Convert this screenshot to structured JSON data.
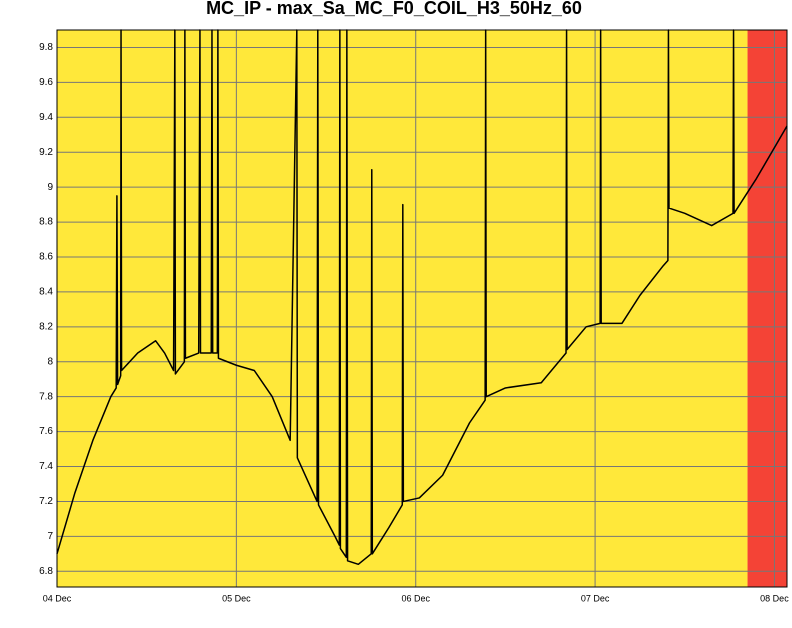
{
  "chart_data": {
    "type": "line",
    "title": "MC_IP - max_Sa_MC_F0_COIL_H3_50Hz_60",
    "x": [
      0,
      0.1,
      0.2,
      0.3,
      0.33,
      0.334,
      0.338,
      0.355,
      0.357,
      0.36,
      0.45,
      0.55,
      0.6,
      0.65,
      0.657,
      0.66,
      0.71,
      0.713,
      0.716,
      0.79,
      0.797,
      0.8,
      0.86,
      0.864,
      0.868,
      0.894,
      0.897,
      0.9,
      1.0,
      1.1,
      1.2,
      1.3,
      1.337,
      1.34,
      1.45,
      1.454,
      1.458,
      1.55,
      1.574,
      1.577,
      1.58,
      1.613,
      1.616,
      1.62,
      1.68,
      1.752,
      1.755,
      1.758,
      1.85,
      1.925,
      1.928,
      1.931,
      2.02,
      2.15,
      2.3,
      2.387,
      2.39,
      2.393,
      2.5,
      2.7,
      2.838,
      2.841,
      2.844,
      2.95,
      3.028,
      3.031,
      3.034,
      3.15,
      3.25,
      3.38,
      3.406,
      3.409,
      3.412,
      3.5,
      3.65,
      3.769,
      3.772,
      3.775,
      3.9,
      4.07
    ],
    "series": [
      {
        "color": "#000000",
        "values": [
          6.9,
          7.25,
          7.55,
          7.8,
          7.85,
          8.95,
          7.87,
          7.92,
          9.9,
          7.95,
          8.05,
          8.12,
          8.05,
          7.95,
          9.9,
          7.93,
          8.0,
          9.9,
          8.02,
          8.05,
          9.9,
          8.05,
          8.05,
          9.9,
          8.05,
          8.05,
          9.9,
          8.02,
          7.98,
          7.95,
          7.8,
          7.55,
          9.9,
          7.45,
          7.2,
          9.9,
          7.18,
          7.0,
          6.95,
          9.9,
          6.93,
          6.88,
          9.9,
          6.86,
          6.84,
          6.9,
          9.1,
          6.9,
          7.05,
          7.18,
          8.9,
          7.2,
          7.22,
          7.35,
          7.65,
          7.78,
          9.9,
          7.8,
          7.85,
          7.88,
          8.05,
          9.9,
          8.07,
          8.2,
          8.22,
          9.9,
          8.22,
          8.22,
          8.38,
          8.55,
          8.58,
          9.9,
          8.88,
          8.85,
          8.78,
          8.85,
          9.9,
          8.85,
          9.05,
          9.35
        ]
      }
    ],
    "bands": [
      {
        "from": 0,
        "to": 3.85,
        "color": "#ffe83a"
      },
      {
        "from": 3.85,
        "to": 4.07,
        "color": "#f44336"
      }
    ],
    "xlim": [
      0,
      4.07
    ],
    "xticks": [
      {
        "value": 0,
        "label": "04 Dec"
      },
      {
        "value": 1,
        "label": "05 Dec"
      },
      {
        "value": 2,
        "label": "06 Dec"
      },
      {
        "value": 3,
        "label": "07 Dec"
      },
      {
        "value": 4,
        "label": "08 Dec"
      }
    ],
    "ylim": [
      6.71,
      9.9
    ],
    "yticks": [
      6.8,
      7,
      7.2,
      7.4,
      7.6,
      7.8,
      8,
      8.2,
      8.4,
      8.6,
      8.8,
      9,
      9.2,
      9.4,
      9.6,
      9.8
    ],
    "grid": true
  }
}
